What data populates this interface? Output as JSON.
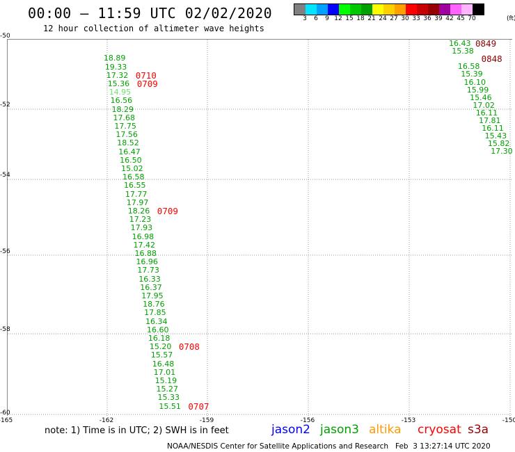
{
  "header": {
    "title": "00:00 – 11:59 UTC 02/02/2020",
    "subtitle": "12 hour collection of altimeter wave heights"
  },
  "colorbar": {
    "colors": [
      "#808080",
      "#00e4ff",
      "#00a0ff",
      "#0000ff",
      "#00ff00",
      "#00c800",
      "#00a000",
      "#ffff00",
      "#ffd000",
      "#ffa000",
      "#ff0000",
      "#c80000",
      "#960000",
      "#a000a0",
      "#ff64ff",
      "#ffb4ff",
      "#000000"
    ],
    "labels": [
      "3",
      "6",
      "9",
      "12",
      "15",
      "18",
      "21",
      "24",
      "27",
      "30",
      "33",
      "36",
      "39",
      "42",
      "45",
      "70"
    ],
    "unit": "(ft)"
  },
  "axes": {
    "lat_labels": [
      "-50",
      "-52",
      "-54",
      "-56",
      "-58",
      "-60"
    ],
    "lon_labels": [
      "-165",
      "-162",
      "-159",
      "-156",
      "-153",
      "-150"
    ]
  },
  "track_west": [
    {
      "v": "",
      "c": "#e6e600"
    },
    {
      "v": "",
      "c": "#e6e600"
    },
    {
      "v": "18.89",
      "c": "#00a000"
    },
    {
      "v": "19.33",
      "c": "#00a000"
    },
    {
      "v": "17.32",
      "c": "#00a000"
    },
    {
      "v": "15.36",
      "c": "#00a000"
    },
    {
      "v": "14.95",
      "c": "#70e070"
    },
    {
      "v": "16.56",
      "c": "#00a000"
    },
    {
      "v": "18.29",
      "c": "#00a000"
    },
    {
      "v": "17.68",
      "c": "#00a000"
    },
    {
      "v": "17.75",
      "c": "#00a000"
    },
    {
      "v": "17.56",
      "c": "#00a000"
    },
    {
      "v": "18.52",
      "c": "#00a000"
    },
    {
      "v": "16.47",
      "c": "#00a000"
    },
    {
      "v": "16.50",
      "c": "#00a000"
    },
    {
      "v": "15.02",
      "c": "#00a000"
    },
    {
      "v": "16.58",
      "c": "#00a000"
    },
    {
      "v": "16.55",
      "c": "#00a000"
    },
    {
      "v": "17.77",
      "c": "#00a000"
    },
    {
      "v": "17.97",
      "c": "#00a000"
    },
    {
      "v": "18.26",
      "c": "#00a000"
    },
    {
      "v": "17.23",
      "c": "#00a000"
    },
    {
      "v": "17.93",
      "c": "#00a000"
    },
    {
      "v": "16.98",
      "c": "#00a000"
    },
    {
      "v": "17.42",
      "c": "#00a000"
    },
    {
      "v": "16.88",
      "c": "#00a000"
    },
    {
      "v": "16.96",
      "c": "#00a000"
    },
    {
      "v": "17.73",
      "c": "#00a000"
    },
    {
      "v": "16.33",
      "c": "#00a000"
    },
    {
      "v": "16.37",
      "c": "#00a000"
    },
    {
      "v": "17.95",
      "c": "#00a000"
    },
    {
      "v": "18.76",
      "c": "#00a000"
    },
    {
      "v": "17.85",
      "c": "#00a000"
    },
    {
      "v": "16.34",
      "c": "#00a000"
    },
    {
      "v": "16.60",
      "c": "#00a000"
    },
    {
      "v": "16.18",
      "c": "#00a000"
    },
    {
      "v": "15.20",
      "c": "#00a000"
    },
    {
      "v": "15.57",
      "c": "#00a000"
    },
    {
      "v": "16.48",
      "c": "#00a000"
    },
    {
      "v": "17.01",
      "c": "#00a000"
    },
    {
      "v": "15.19",
      "c": "#00a000"
    },
    {
      "v": "15.27",
      "c": "#00a000"
    },
    {
      "v": "15.33",
      "c": "#00a000"
    },
    {
      "v": "15.51",
      "c": "#00a000"
    }
  ],
  "track_east": [
    {
      "v": "16.43",
      "c": "#00a000"
    },
    {
      "v": "15.38",
      "c": "#00a000"
    },
    {
      "v": "",
      "c": "#70e070"
    },
    {
      "v": "16.58",
      "c": "#00a000"
    },
    {
      "v": "15.39",
      "c": "#00a000"
    },
    {
      "v": "16.10",
      "c": "#00a000"
    },
    {
      "v": "15.99",
      "c": "#00a000"
    },
    {
      "v": "15.46",
      "c": "#00a000"
    },
    {
      "v": "17.02",
      "c": "#00a000"
    },
    {
      "v": "16.11",
      "c": "#00a000"
    },
    {
      "v": "17.81",
      "c": "#00a000"
    },
    {
      "v": "16.11",
      "c": "#00a000"
    },
    {
      "v": "15.43",
      "c": "#00a000"
    },
    {
      "v": "15.82",
      "c": "#00a000"
    },
    {
      "v": "17.30",
      "c": "#00a000"
    },
    {
      "v": "",
      "c": "#70e070"
    },
    {
      "v": "",
      "c": "#70e070"
    },
    {
      "v": "",
      "c": "#70e070"
    }
  ],
  "times_west": [
    {
      "t": "0710",
      "row": 4,
      "c": "#ff0000"
    },
    {
      "t": "0709",
      "row": 5,
      "c": "#ff0000"
    },
    {
      "t": "0709",
      "row": 20,
      "c": "#ff0000"
    },
    {
      "t": "0708",
      "row": 36,
      "c": "#ff0000"
    },
    {
      "t": "0707",
      "row": 43,
      "c": "#ff0000"
    }
  ],
  "times_east": [
    {
      "t": "0849",
      "row": 0,
      "c": "#8b0000"
    },
    {
      "t": "0848",
      "row": 2,
      "c": "#8b0000"
    }
  ],
  "note": "note: 1) Time is in UTC; 2) SWH is in feet",
  "satellites": [
    {
      "name": "jason2",
      "color": "#0000ff"
    },
    {
      "name": "jason3",
      "color": "#00a000"
    },
    {
      "name": "altika",
      "color": "#ff9900"
    },
    {
      "name": "cryosat",
      "color": "#ff0000"
    },
    {
      "name": "s3a",
      "color": "#990000"
    }
  ],
  "credit": "NOAA/NESDIS Center for Satellite Applications and Research   Feb  3 13:27:14 UTC 2020"
}
